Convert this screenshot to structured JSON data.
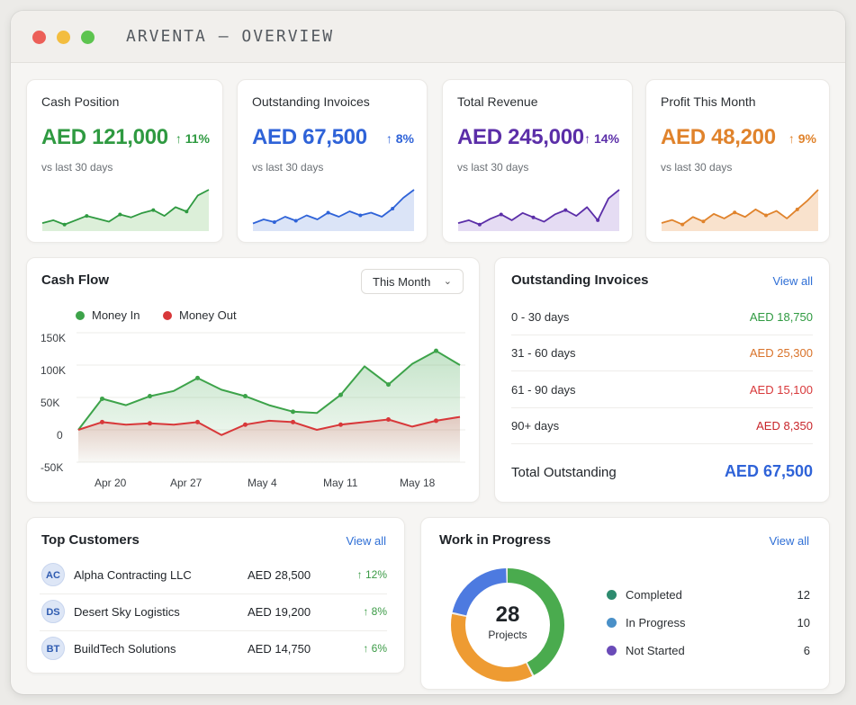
{
  "window": {
    "title": "ARVENTA — OVERVIEW"
  },
  "kpis": [
    {
      "label": "Cash Position",
      "value": "AED 121,000",
      "change": "↑ 11%",
      "sub": "vs last 30 days",
      "color": "#2f9a41",
      "fill": "#dcefd9",
      "trend": [
        3,
        5,
        2,
        5,
        8,
        6,
        4,
        9,
        7,
        10,
        12,
        8,
        14,
        11,
        22,
        26
      ]
    },
    {
      "label": "Outstanding Invoices",
      "value": "AED 67,500",
      "change": "↑ 8%",
      "sub": "vs last 30 days",
      "color": "#2f63d8",
      "fill": "#dbe4f7",
      "trend": [
        3,
        6,
        4,
        8,
        5,
        9,
        6,
        11,
        8,
        12,
        9,
        11,
        8,
        14,
        22,
        28
      ]
    },
    {
      "label": "Total Revenue",
      "value": "AED 245,000",
      "change": "↑ 14%",
      "sub": "vs last 30 days",
      "color": "#5b2ea8",
      "fill": "#e5dcf3",
      "trend": [
        3,
        5,
        2,
        6,
        9,
        5,
        10,
        7,
        4,
        9,
        12,
        8,
        14,
        5,
        20,
        26
      ]
    },
    {
      "label": "Profit This Month",
      "value": "AED 48,200",
      "change": "↑ 9%",
      "sub": "vs last 30 days",
      "color": "#e0832c",
      "fill": "#f9e2cd",
      "trend": [
        3,
        5,
        2,
        7,
        4,
        9,
        6,
        10,
        7,
        12,
        8,
        11,
        6,
        12,
        18,
        25
      ]
    }
  ],
  "cash_flow": {
    "title": "Cash Flow",
    "period": "This Month",
    "legend": {
      "in": "Money In",
      "out": "Money Out"
    },
    "colors": {
      "in": "#3da34a",
      "out": "#d8383a"
    }
  },
  "chart_data": {
    "type": "line",
    "y_ticks": [
      "150K",
      "100K",
      "50K",
      "0",
      "-50K"
    ],
    "ylim": [
      -50000,
      150000
    ],
    "x_ticks": [
      "Apr 20",
      "Apr 27",
      "May 4",
      "May 11",
      "May 18"
    ],
    "series": [
      {
        "name": "Money In",
        "values": [
          0,
          48000,
          38000,
          52000,
          60000,
          80000,
          62000,
          52000,
          38000,
          28000,
          26000,
          54000,
          98000,
          70000,
          102000,
          122000,
          100000
        ]
      },
      {
        "name": "Money Out",
        "values": [
          0,
          12000,
          8000,
          10000,
          8000,
          12000,
          -8000,
          8000,
          14000,
          12000,
          0,
          8000,
          12000,
          16000,
          5000,
          14000,
          20000
        ]
      }
    ]
  },
  "outstanding": {
    "title": "Outstanding Invoices",
    "view_all": "View all",
    "rows": [
      {
        "label": "0 - 30 days",
        "value": "AED 18,750",
        "color": "#2f9a41"
      },
      {
        "label": "31 - 60 days",
        "value": "AED 25,300",
        "color": "#d9732a"
      },
      {
        "label": "61 - 90 days",
        "value": "AED 15,100",
        "color": "#d8383a"
      },
      {
        "label": "90+ days",
        "value": "AED 8,350",
        "color": "#c8262b"
      }
    ],
    "total_label": "Total Outstanding",
    "total_value": "AED 67,500"
  },
  "customers": {
    "title": "Top Customers",
    "view_all": "View all",
    "rows": [
      {
        "initials": "AC",
        "name": "Alpha Contracting LLC",
        "amount": "AED 28,500",
        "change": "↑ 12%"
      },
      {
        "initials": "DS",
        "name": "Desert Sky Logistics",
        "amount": "AED 19,200",
        "change": "↑ 8%"
      },
      {
        "initials": "BT",
        "name": "BuildTech Solutions",
        "amount": "AED 14,750",
        "change": "↑ 6%"
      }
    ]
  },
  "wip": {
    "title": "Work in Progress",
    "view_all": "View all",
    "total": "28",
    "total_label": "Projects",
    "items": [
      {
        "label": "Completed",
        "value": 12,
        "color": "#2e8b6f",
        "ring": "#4aab4e"
      },
      {
        "label": "In Progress",
        "value": 10,
        "color": "#4a90c8",
        "ring": "#ee9b32"
      },
      {
        "label": "Not Started",
        "value": 6,
        "color": "#6a4bb8",
        "ring": "#4d7ae0"
      }
    ]
  }
}
